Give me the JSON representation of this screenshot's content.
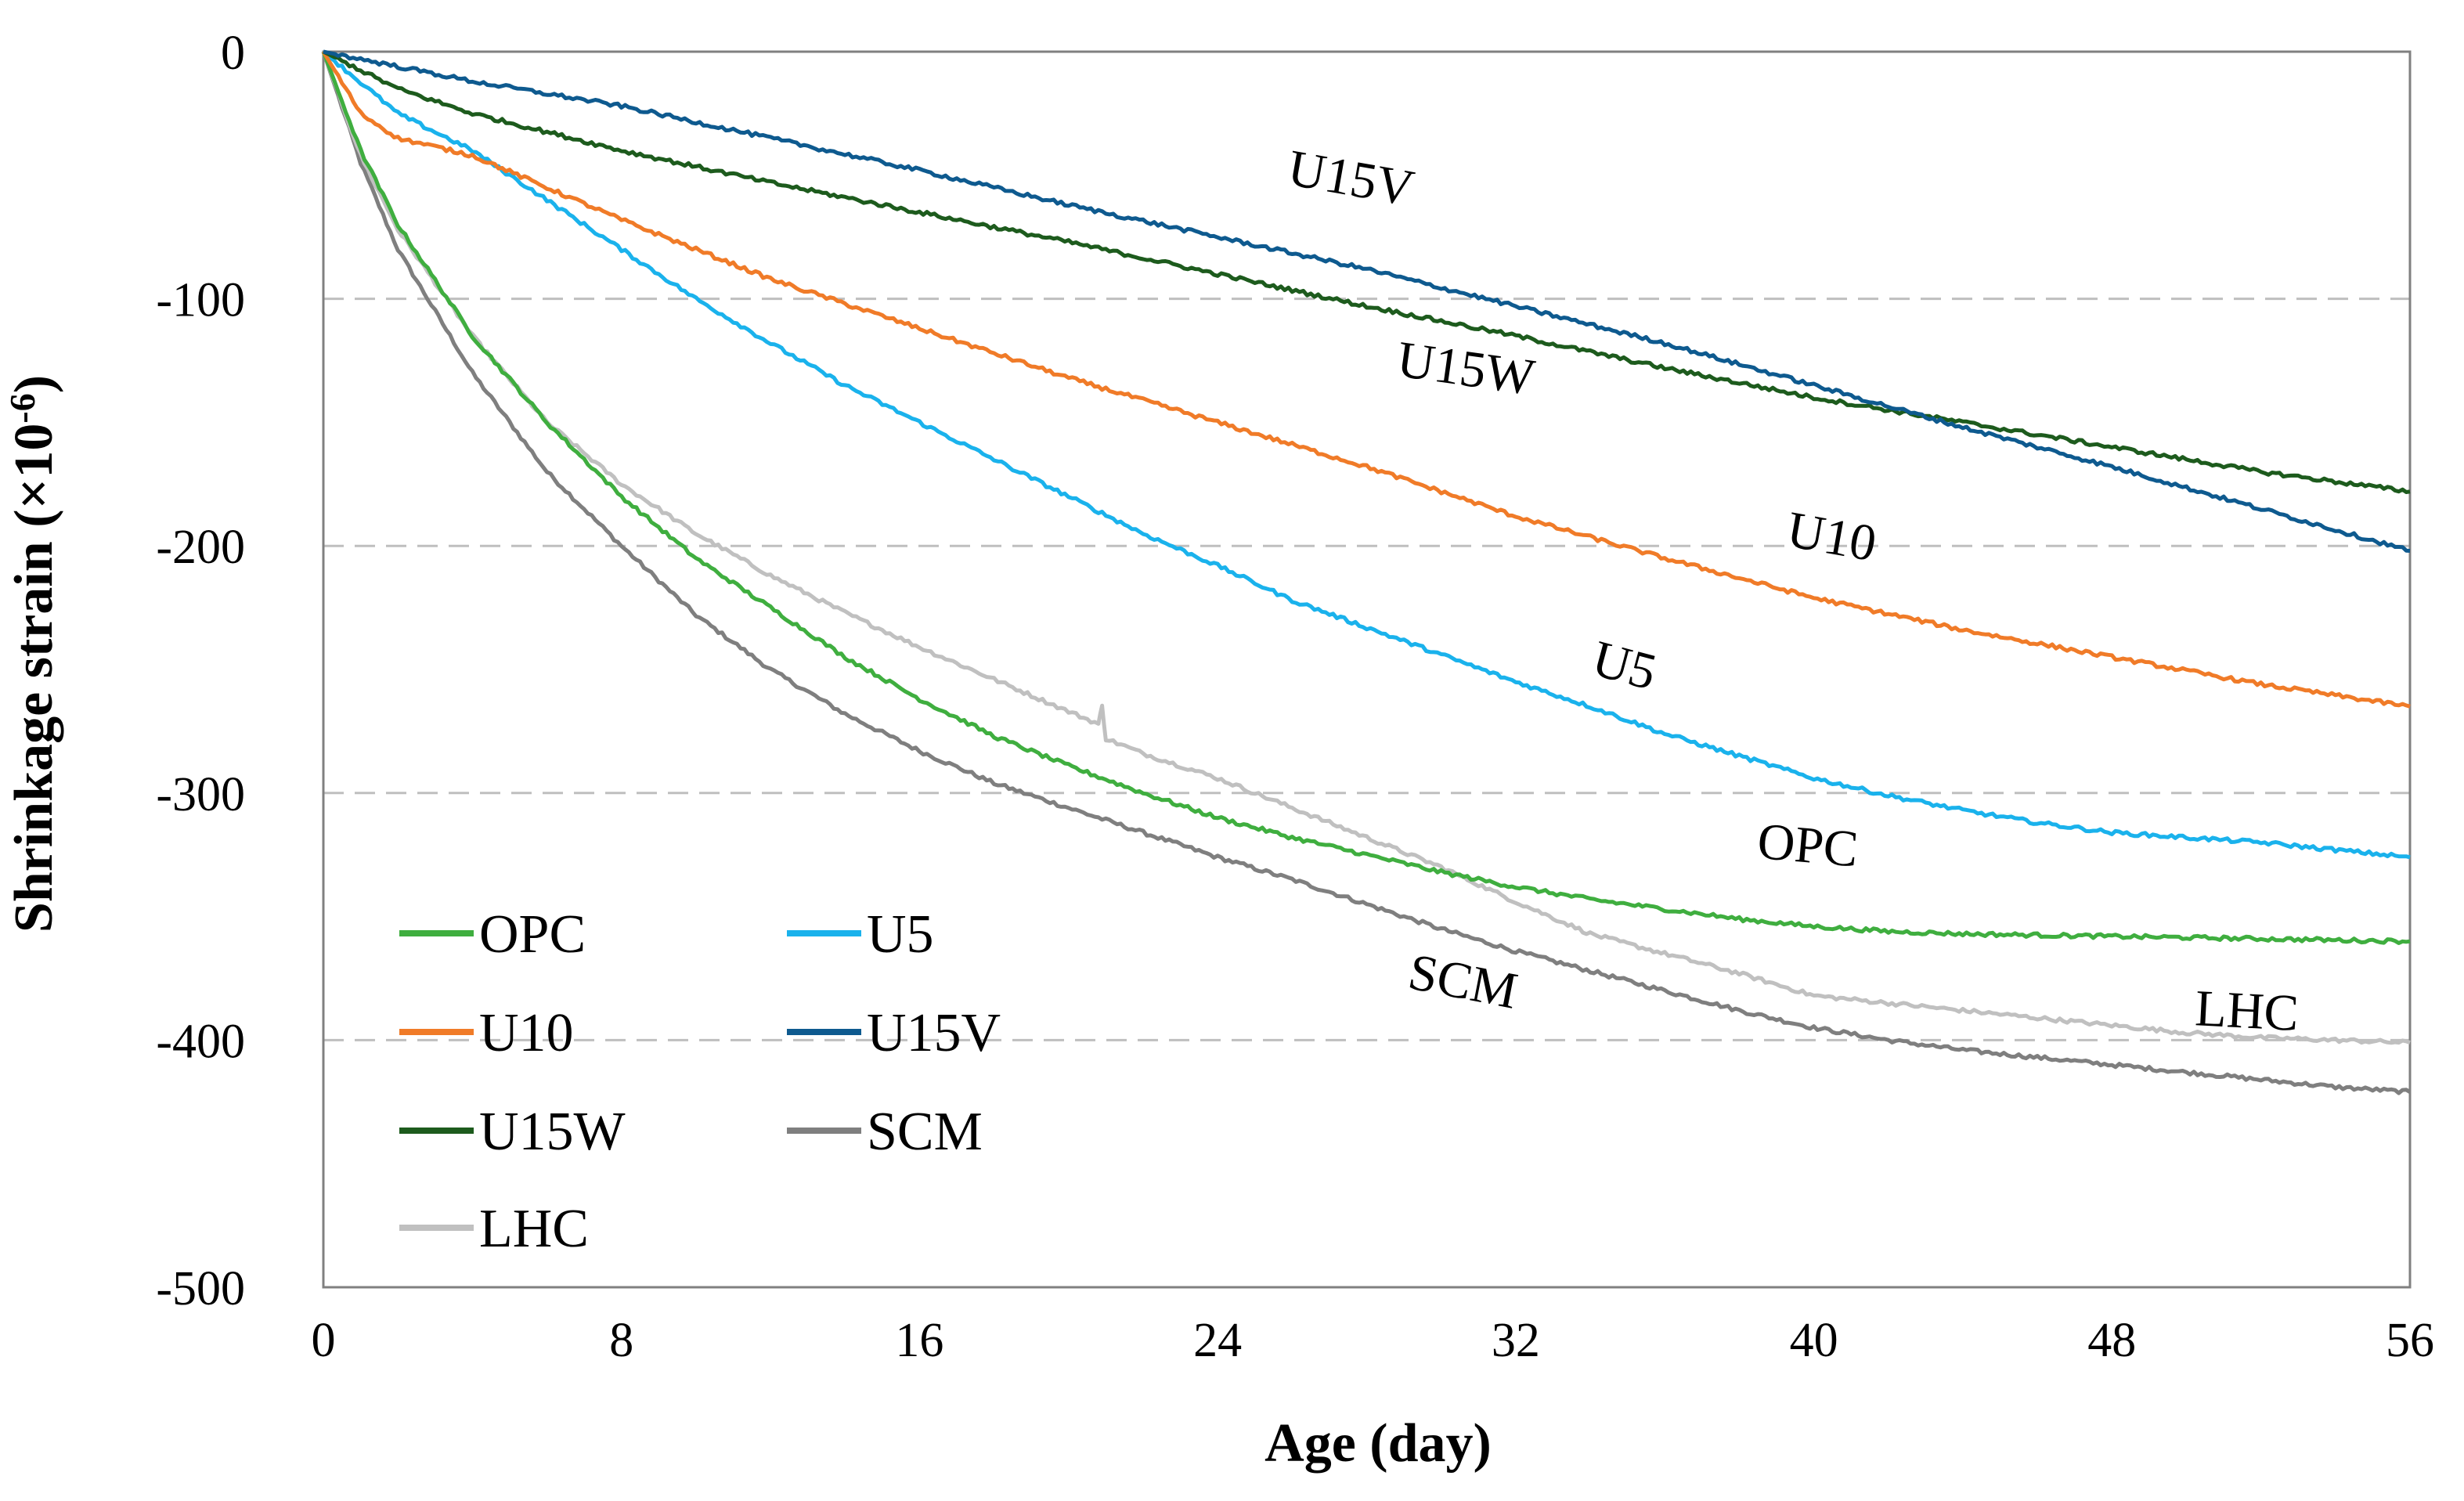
{
  "chart_data": {
    "type": "line",
    "title": "",
    "xlabel": "Age (day)",
    "ylabel": "Shrinkage strain (×10",
    "ylabel_exp": "-6",
    "ylabel_close": ")",
    "xlim": [
      0,
      56
    ],
    "ylim": [
      -500,
      0
    ],
    "x_ticks": [
      "0",
      "8",
      "16",
      "24",
      "32",
      "40",
      "48",
      "56"
    ],
    "y_ticks": [
      "0",
      "-100",
      "-200",
      "-300",
      "-400",
      "-500"
    ],
    "grid": "horizontal dashed",
    "legend_position": "bottom-left",
    "series": [
      {
        "name": "OPC",
        "color": "#3fae3f",
        "x": [
          0,
          1,
          2,
          4,
          6,
          8,
          10,
          12,
          14,
          16,
          18,
          20,
          22,
          24,
          26,
          28,
          30,
          32,
          34,
          36,
          38,
          40,
          42,
          44,
          48,
          52,
          56
        ],
        "y": [
          0,
          -40,
          -70,
          -115,
          -150,
          -180,
          -205,
          -225,
          -245,
          -262,
          -277,
          -289,
          -300,
          -310,
          -318,
          -325,
          -332,
          -338,
          -343,
          -347,
          -351,
          -354,
          -356,
          -357,
          -358,
          -359,
          -360
        ]
      },
      {
        "name": "U5",
        "color": "#1ab2ec",
        "x": [
          0,
          2,
          4,
          6,
          8,
          10,
          12,
          14,
          16,
          18,
          20,
          22,
          24,
          26,
          28,
          30,
          32,
          34,
          36,
          38,
          40,
          42,
          44,
          46,
          48,
          50,
          52,
          54,
          56
        ],
        "y": [
          0,
          -25,
          -40,
          -60,
          -80,
          -100,
          -118,
          -135,
          -150,
          -165,
          -180,
          -195,
          -208,
          -222,
          -233,
          -244,
          -255,
          -265,
          -276,
          -285,
          -294,
          -301,
          -307,
          -312,
          -316,
          -318,
          -320,
          -323,
          -326
        ]
      },
      {
        "name": "U10",
        "color": "#f07b28",
        "x": [
          0,
          1,
          2,
          4,
          6,
          8,
          12,
          16,
          20,
          24,
          28,
          32,
          36,
          40,
          44,
          48,
          52,
          56
        ],
        "y": [
          0,
          -25,
          -35,
          -42,
          -55,
          -68,
          -92,
          -112,
          -132,
          -150,
          -168,
          -188,
          -205,
          -221,
          -234,
          -245,
          -256,
          -265
        ]
      },
      {
        "name": "U15V",
        "color": "#0e5a8f",
        "x": [
          0,
          4,
          8,
          12,
          16,
          20,
          24,
          28,
          32,
          36,
          40,
          44,
          48,
          52,
          56
        ],
        "y": [
          0,
          -12,
          -22,
          -35,
          -48,
          -62,
          -75,
          -88,
          -103,
          -118,
          -135,
          -152,
          -168,
          -185,
          -202
        ]
      },
      {
        "name": "U15W",
        "color": "#1d5b1d",
        "x": [
          0,
          2,
          4,
          8,
          12,
          16,
          20,
          24,
          28,
          32,
          36,
          40,
          44,
          48,
          52,
          56
        ],
        "y": [
          0,
          -15,
          -25,
          -40,
          -53,
          -65,
          -77,
          -90,
          -103,
          -115,
          -128,
          -140,
          -150,
          -160,
          -170,
          -178
        ]
      },
      {
        "name": "SCM",
        "color": "#7f7f7f",
        "x": [
          0,
          1,
          2,
          4,
          6,
          8,
          10,
          12,
          14,
          16,
          18,
          20,
          22,
          24,
          26,
          28,
          30,
          32,
          34,
          36,
          38,
          40,
          42,
          44,
          46,
          48,
          50,
          52,
          54,
          56
        ],
        "y": [
          0,
          -45,
          -80,
          -130,
          -170,
          -200,
          -228,
          -250,
          -268,
          -283,
          -296,
          -306,
          -316,
          -326,
          -335,
          -345,
          -355,
          -364,
          -372,
          -380,
          -388,
          -395,
          -400,
          -404,
          -407,
          -410,
          -413,
          -416,
          -419,
          -421
        ]
      },
      {
        "name": "LHC",
        "color": "#c0c0c0",
        "x": [
          0,
          1,
          2,
          4,
          6,
          8,
          10,
          12,
          14,
          16,
          18,
          20,
          20.8,
          20.9,
          21,
          22,
          24,
          26,
          28,
          30,
          32,
          34,
          36,
          38,
          40,
          42,
          44,
          46,
          48,
          50,
          52,
          54,
          56
        ],
        "y": [
          0,
          -42,
          -72,
          -115,
          -150,
          -175,
          -195,
          -212,
          -227,
          -241,
          -254,
          -267,
          -272,
          -265,
          -278,
          -284,
          -294,
          -306,
          -318,
          -330,
          -344,
          -357,
          -365,
          -373,
          -382,
          -385,
          -388,
          -391,
          -394,
          -397,
          -399,
          -400,
          -401
        ]
      }
    ],
    "annotations": [
      {
        "text": "U15V",
        "x": 27.5,
        "y": -58,
        "angle": 10
      },
      {
        "text": "U15W",
        "x": 30.6,
        "y": -135,
        "angle": 8
      },
      {
        "text": "U10",
        "x": 40.4,
        "y": -203,
        "angle": 10
      },
      {
        "text": "U5",
        "x": 34.8,
        "y": -255,
        "angle": 15
      },
      {
        "text": "OPC",
        "x": 39.8,
        "y": -328,
        "angle": 5
      },
      {
        "text": "SCM",
        "x": 30.5,
        "y": -383,
        "angle": 11
      },
      {
        "text": "LHC",
        "x": 51.6,
        "y": -395,
        "angle": 3
      }
    ]
  }
}
